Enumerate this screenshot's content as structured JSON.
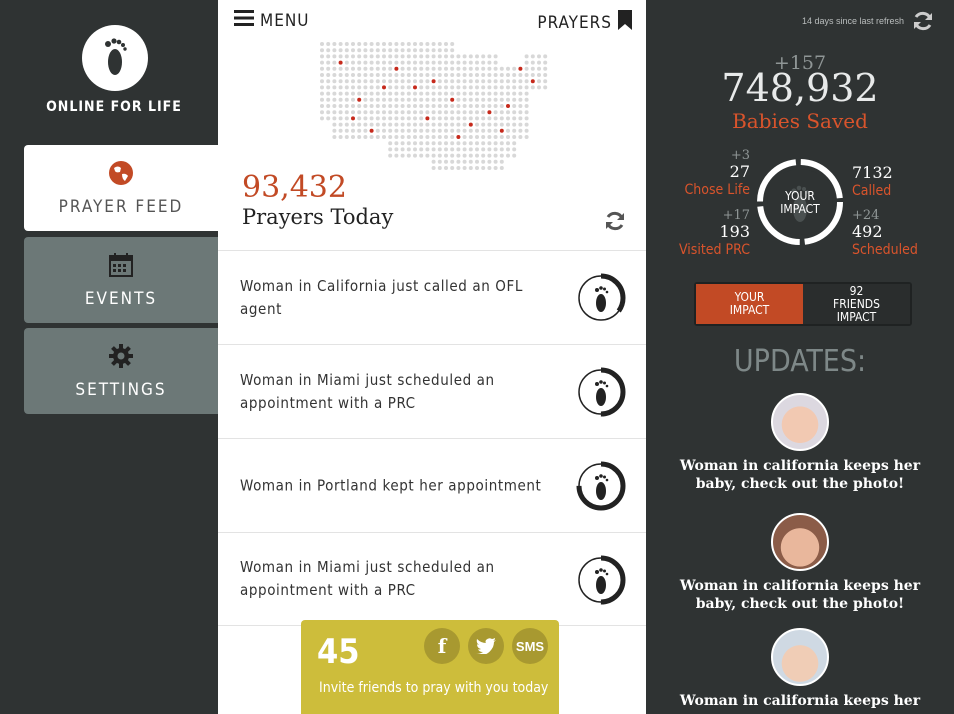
{
  "sidebar": {
    "logo_text": "ONLINE FOR LIFE",
    "items": [
      {
        "label": "PRAYER FEED",
        "icon": "globe-icon",
        "active": true
      },
      {
        "label": "EVENTS",
        "icon": "calendar-icon",
        "active": false
      },
      {
        "label": "SETTINGS",
        "icon": "gear-icon",
        "active": false
      }
    ]
  },
  "topbar": {
    "menu_label": "MENU",
    "prayers_label": "PRAYERS"
  },
  "prayers": {
    "count": "93,432",
    "label": "Prayers Today"
  },
  "feed": [
    {
      "text": "Woman in California just called an OFL agent",
      "progress": 0.35
    },
    {
      "text": "Woman in Miami just scheduled an appointment with a PRC",
      "progress": 0.5
    },
    {
      "text": "Woman in Portland kept her appointment",
      "progress": 0.75
    },
    {
      "text": "Woman in Miami just scheduled an appointment with a PRC",
      "progress": 0.5
    }
  ],
  "invite": {
    "count": "45",
    "text": "Invite friends to pray with you today",
    "facebook": "f",
    "sms": "SMS"
  },
  "stats": {
    "last_refresh": "14 days since last refresh",
    "babies_delta": "+157",
    "babies_saved": "748,932",
    "babies_label": "Babies Saved",
    "chose_life": {
      "delta": "+3",
      "value": "27",
      "label": "Chose Life"
    },
    "called": {
      "value": "7132",
      "label": "Called"
    },
    "visited": {
      "delta": "+17",
      "value": "193",
      "label": "Visited PRC"
    },
    "scheduled": {
      "delta": "+24",
      "value": "492",
      "label": "Scheduled"
    },
    "impact_label": "YOUR IMPACT"
  },
  "toggle": {
    "yours": "YOUR IMPACT",
    "friends": "92 FRIENDS IMPACT"
  },
  "updates": {
    "title": "UPDATES:",
    "items": [
      "Woman in california keeps her baby, check out the photo!",
      "Woman in california keeps her baby, check out the photo!",
      "Woman in california keeps her"
    ]
  },
  "colors": {
    "accent": "#c24a25",
    "dark": "#2f3333",
    "nav": "#6c7877",
    "invite": "#cdbd3b"
  }
}
